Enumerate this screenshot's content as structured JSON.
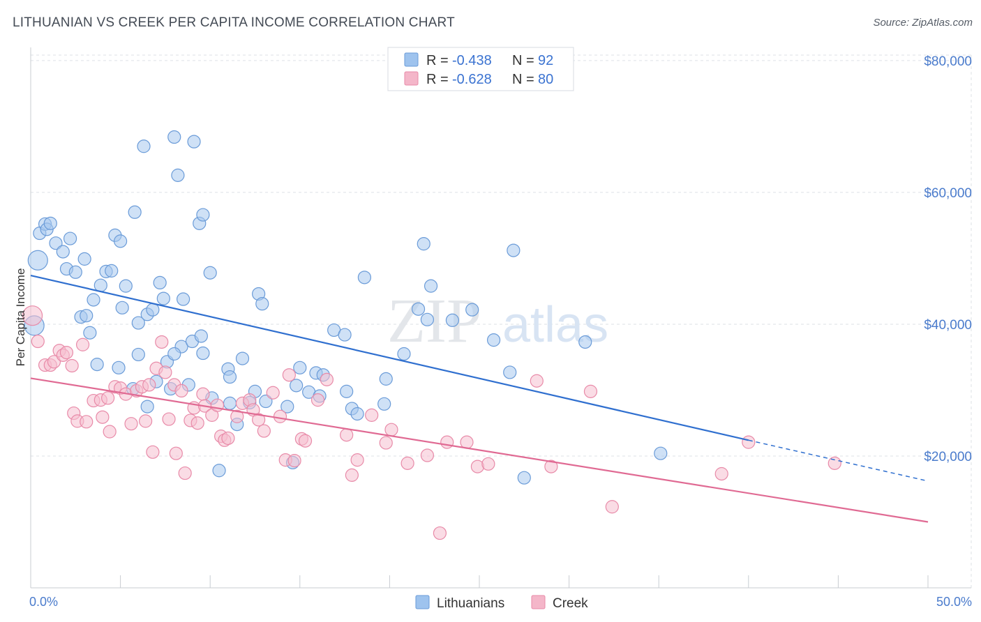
{
  "header": {
    "title": "LITHUANIAN VS CREEK PER CAPITA INCOME CORRELATION CHART",
    "source": "Source: ZipAtlas.com"
  },
  "watermark": {
    "zip": "ZIP",
    "atlas": "atlas"
  },
  "legend": {
    "r_label": "R =",
    "n_label": "N =",
    "rows": [
      {
        "r": "-0.438",
        "n": "92",
        "color": "#9ec3ee"
      },
      {
        "r": "-0.628",
        "n": "80",
        "color": "#f4b6c9"
      }
    ]
  },
  "bottom_legend": [
    {
      "label": "Lithuanians",
      "color": "#9ec3ee"
    },
    {
      "label": "Creek",
      "color": "#f4b6c9"
    }
  ],
  "colors": {
    "lith_fill": "#a8c8ef",
    "lith_stroke": "#6a9bd8",
    "lith_line": "#2f6fcf",
    "creek_fill": "#f6bfd0",
    "creek_stroke": "#e88aa8",
    "creek_line": "#e06a93",
    "grid": "#dde1e6"
  },
  "chart_data": {
    "type": "scatter",
    "title": "LITHUANIAN VS CREEK PER CAPITA INCOME CORRELATION CHART",
    "xlabel": "",
    "ylabel": "Per Capita Income",
    "xlim": [
      0,
      50
    ],
    "ylim": [
      0,
      82000
    ],
    "x_tick_labels": [
      "0.0%",
      "50.0%"
    ],
    "y_ticks": [
      20000,
      40000,
      60000,
      80000
    ],
    "y_tick_labels": [
      "$20,000",
      "$40,000",
      "$60,000",
      "$80,000"
    ],
    "grid": true,
    "legend_position": "top-center",
    "series": [
      {
        "name": "Lithuanians",
        "r": -0.438,
        "n": 92,
        "trend": {
          "x0": 0,
          "y0": 47400,
          "x1": 40,
          "y1": 22400,
          "dash_to_x": 50,
          "dash_to_y": 16200
        },
        "points": [
          [
            0.5,
            53800
          ],
          [
            0.8,
            55200
          ],
          [
            0.9,
            54400
          ],
          [
            1.1,
            55300
          ],
          [
            0.4,
            49700
          ],
          [
            0.2,
            39800
          ],
          [
            1.4,
            52300
          ],
          [
            1.8,
            51000
          ],
          [
            2.2,
            53000
          ],
          [
            2.0,
            48400
          ],
          [
            2.5,
            47900
          ],
          [
            3.0,
            49900
          ],
          [
            2.8,
            41100
          ],
          [
            3.1,
            41300
          ],
          [
            3.5,
            43700
          ],
          [
            3.9,
            45900
          ],
          [
            4.2,
            48000
          ],
          [
            4.5,
            48100
          ],
          [
            4.7,
            53500
          ],
          [
            5.0,
            52600
          ],
          [
            5.3,
            45800
          ],
          [
            5.8,
            57000
          ],
          [
            6.0,
            35400
          ],
          [
            6.3,
            67000
          ],
          [
            6.5,
            41500
          ],
          [
            6.8,
            42200
          ],
          [
            7.2,
            46300
          ],
          [
            7.4,
            43900
          ],
          [
            8.0,
            68400
          ],
          [
            8.2,
            62600
          ],
          [
            8.5,
            43800
          ],
          [
            9.1,
            67700
          ],
          [
            9.4,
            55300
          ],
          [
            9.6,
            56600
          ],
          [
            10.0,
            47800
          ],
          [
            3.7,
            33900
          ],
          [
            4.9,
            33400
          ],
          [
            5.1,
            42500
          ],
          [
            5.7,
            30200
          ],
          [
            6.5,
            27500
          ],
          [
            7.0,
            31300
          ],
          [
            7.6,
            34300
          ],
          [
            7.8,
            30200
          ],
          [
            8.4,
            36600
          ],
          [
            8.8,
            30800
          ],
          [
            9.0,
            37400
          ],
          [
            9.6,
            35600
          ],
          [
            10.1,
            28800
          ],
          [
            11.1,
            28000
          ],
          [
            11.0,
            33200
          ],
          [
            11.1,
            32000
          ],
          [
            11.8,
            34800
          ],
          [
            12.2,
            28100
          ],
          [
            12.5,
            29800
          ],
          [
            12.7,
            44600
          ],
          [
            12.9,
            43100
          ],
          [
            13.1,
            28300
          ],
          [
            14.3,
            27500
          ],
          [
            14.6,
            19000
          ],
          [
            14.8,
            30700
          ],
          [
            15.5,
            29700
          ],
          [
            15.9,
            32600
          ],
          [
            16.1,
            29100
          ],
          [
            16.3,
            32300
          ],
          [
            16.9,
            39100
          ],
          [
            17.5,
            38400
          ],
          [
            17.6,
            29800
          ],
          [
            17.9,
            27200
          ],
          [
            18.2,
            26400
          ],
          [
            18.6,
            47100
          ],
          [
            19.7,
            27900
          ],
          [
            19.8,
            31700
          ],
          [
            20.8,
            35500
          ],
          [
            21.6,
            42300
          ],
          [
            21.9,
            52200
          ],
          [
            22.1,
            40700
          ],
          [
            22.3,
            45800
          ],
          [
            23.5,
            40600
          ],
          [
            24.6,
            42200
          ],
          [
            25.8,
            37600
          ],
          [
            26.7,
            32700
          ],
          [
            26.9,
            51200
          ],
          [
            27.5,
            16700
          ],
          [
            30.9,
            37300
          ],
          [
            35.1,
            20400
          ],
          [
            10.5,
            17800
          ],
          [
            11.5,
            24800
          ],
          [
            8.0,
            35500
          ],
          [
            6.0,
            40200
          ],
          [
            3.3,
            38700
          ],
          [
            9.5,
            38200
          ],
          [
            15.0,
            33400
          ]
        ]
      },
      {
        "name": "Creek",
        "r": -0.628,
        "n": 80,
        "trend": {
          "x0": 0,
          "y0": 31800,
          "x1": 50,
          "y1": 10000
        },
        "points": [
          [
            0.1,
            41300
          ],
          [
            0.4,
            37400
          ],
          [
            0.8,
            33800
          ],
          [
            1.1,
            33800
          ],
          [
            1.3,
            34300
          ],
          [
            1.6,
            36000
          ],
          [
            1.8,
            35300
          ],
          [
            2.0,
            35700
          ],
          [
            2.3,
            33700
          ],
          [
            2.4,
            26500
          ],
          [
            2.6,
            25300
          ],
          [
            2.9,
            36900
          ],
          [
            3.1,
            25200
          ],
          [
            3.5,
            28400
          ],
          [
            3.9,
            28500
          ],
          [
            4.0,
            25900
          ],
          [
            4.3,
            28800
          ],
          [
            4.4,
            23700
          ],
          [
            4.7,
            30500
          ],
          [
            5.0,
            30300
          ],
          [
            5.3,
            29400
          ],
          [
            5.6,
            24900
          ],
          [
            5.9,
            29900
          ],
          [
            6.2,
            30500
          ],
          [
            6.4,
            25300
          ],
          [
            6.6,
            30800
          ],
          [
            6.8,
            20600
          ],
          [
            7.0,
            33300
          ],
          [
            7.3,
            37300
          ],
          [
            7.5,
            32700
          ],
          [
            7.7,
            25600
          ],
          [
            8.0,
            30800
          ],
          [
            8.1,
            20400
          ],
          [
            8.4,
            29900
          ],
          [
            8.6,
            17400
          ],
          [
            8.9,
            25400
          ],
          [
            9.1,
            27300
          ],
          [
            9.3,
            25000
          ],
          [
            9.6,
            29400
          ],
          [
            9.7,
            27600
          ],
          [
            10.1,
            26200
          ],
          [
            10.4,
            27700
          ],
          [
            10.6,
            23000
          ],
          [
            10.8,
            22400
          ],
          [
            11.0,
            22700
          ],
          [
            11.5,
            26000
          ],
          [
            11.8,
            28000
          ],
          [
            12.2,
            28500
          ],
          [
            12.4,
            27000
          ],
          [
            12.7,
            25500
          ],
          [
            13.0,
            23800
          ],
          [
            13.5,
            29600
          ],
          [
            13.9,
            26000
          ],
          [
            14.2,
            19400
          ],
          [
            14.4,
            32300
          ],
          [
            14.7,
            19300
          ],
          [
            15.1,
            22600
          ],
          [
            15.3,
            22300
          ],
          [
            16.0,
            28500
          ],
          [
            16.5,
            31600
          ],
          [
            17.6,
            23200
          ],
          [
            17.9,
            17100
          ],
          [
            18.2,
            19400
          ],
          [
            19.0,
            26200
          ],
          [
            19.8,
            22000
          ],
          [
            20.1,
            24000
          ],
          [
            21.0,
            18900
          ],
          [
            22.1,
            20100
          ],
          [
            22.8,
            8300
          ],
          [
            23.2,
            22100
          ],
          [
            24.3,
            22100
          ],
          [
            24.9,
            18400
          ],
          [
            25.5,
            18800
          ],
          [
            28.2,
            31400
          ],
          [
            29.0,
            18400
          ],
          [
            31.2,
            29800
          ],
          [
            32.4,
            12300
          ],
          [
            38.5,
            17300
          ],
          [
            40.0,
            22100
          ],
          [
            44.8,
            18900
          ]
        ]
      }
    ]
  }
}
